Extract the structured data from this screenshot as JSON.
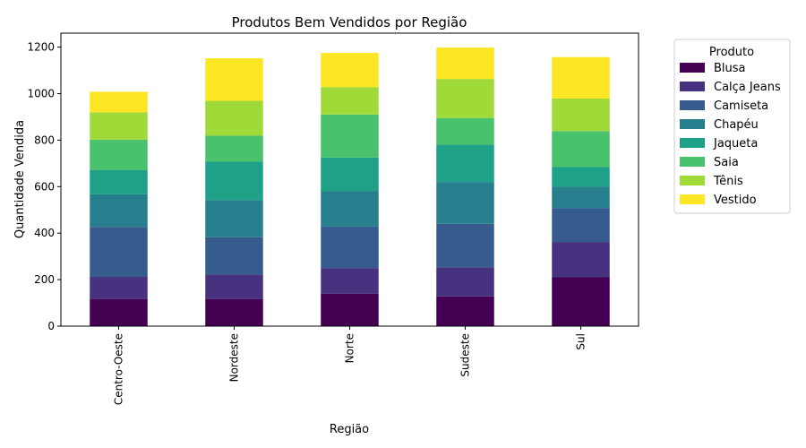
{
  "chart_data": {
    "type": "bar",
    "stacked": true,
    "title": "Produtos Bem Vendidos por Região",
    "xlabel": "Região",
    "ylabel": "Quantidade Vendida",
    "ylim": [
      0,
      1260
    ],
    "yticks": [
      0,
      200,
      400,
      600,
      800,
      1000,
      1200
    ],
    "grid": false,
    "legend_title": "Produto",
    "legend_position": "outside-top-right",
    "categories": [
      "Centro-Oeste",
      "Nordeste",
      "Norte",
      "Sudeste",
      "Sul"
    ],
    "series": [
      {
        "name": "Blusa",
        "color": "#440154",
        "values": [
          117,
          117,
          140,
          128,
          210
        ]
      },
      {
        "name": "Calça Jeans",
        "color": "#46327e",
        "values": [
          95,
          105,
          110,
          125,
          152
        ]
      },
      {
        "name": "Camiseta",
        "color": "#365c8d",
        "values": [
          215,
          160,
          178,
          187,
          145
        ]
      },
      {
        "name": "Chapéu",
        "color": "#277f8e",
        "values": [
          140,
          160,
          152,
          180,
          92
        ]
      },
      {
        "name": "Jaqueta",
        "color": "#1fa187",
        "values": [
          105,
          165,
          145,
          160,
          85
        ]
      },
      {
        "name": "Saia",
        "color": "#4ac16d",
        "values": [
          130,
          112,
          185,
          115,
          155
        ]
      },
      {
        "name": "Tênis",
        "color": "#a0da39",
        "values": [
          118,
          150,
          118,
          168,
          140
        ]
      },
      {
        "name": "Vestido",
        "color": "#fde725",
        "values": [
          88,
          183,
          147,
          135,
          178
        ]
      }
    ]
  }
}
